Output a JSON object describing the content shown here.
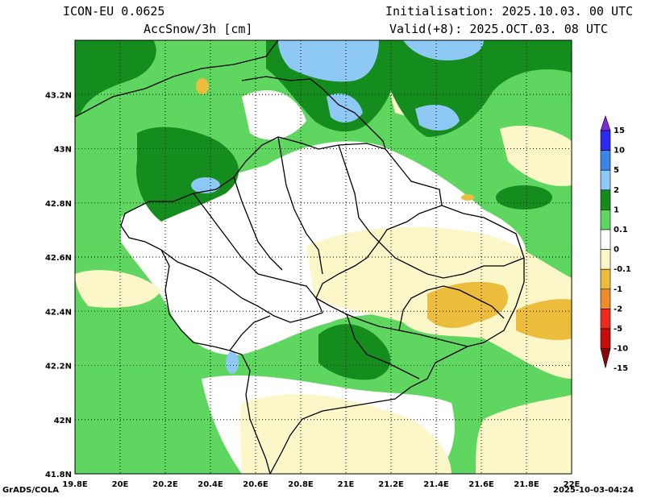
{
  "header": {
    "model": "ICON-EU 0.0625",
    "variable": "AccSnow/3h [cm]",
    "init": "Initialisation: 2025.10.03. 00 UTC",
    "valid": "Valid(+8): 2025.OCT.03. 08 UTC"
  },
  "footer": {
    "left": "GrADS/COLA",
    "right": "2025-10-03-04:24"
  },
  "map": {
    "lon_range": [
      19.8,
      22.0
    ],
    "lat_range": [
      41.8,
      43.4
    ],
    "lon_ticks": [
      "19.8E",
      "20E",
      "20.2E",
      "20.4E",
      "20.6E",
      "20.8E",
      "21E",
      "21.2E",
      "21.4E",
      "21.6E",
      "21.8E",
      "22E"
    ],
    "lat_ticks": [
      "41.8N",
      "42N",
      "42.2N",
      "42.4N",
      "42.6N",
      "42.8N",
      "43N",
      "43.2N"
    ],
    "grid": true
  },
  "colorbar": {
    "labels": [
      "15",
      "10",
      "5",
      "2",
      "1",
      "0.1",
      "0",
      "-0.1",
      "-1",
      "-2",
      "-5",
      "-10",
      "-15"
    ],
    "colors": [
      "#7b2fd6",
      "#2a2af0",
      "#3a86e8",
      "#8ec8f5",
      "#148c1e",
      "#5fd65f",
      "#ffffff",
      "#fbf7c8",
      "#ecbc3c",
      "#ee8c2a",
      "#ee2a1e",
      "#c80c0c",
      "#8c0808"
    ]
  }
}
